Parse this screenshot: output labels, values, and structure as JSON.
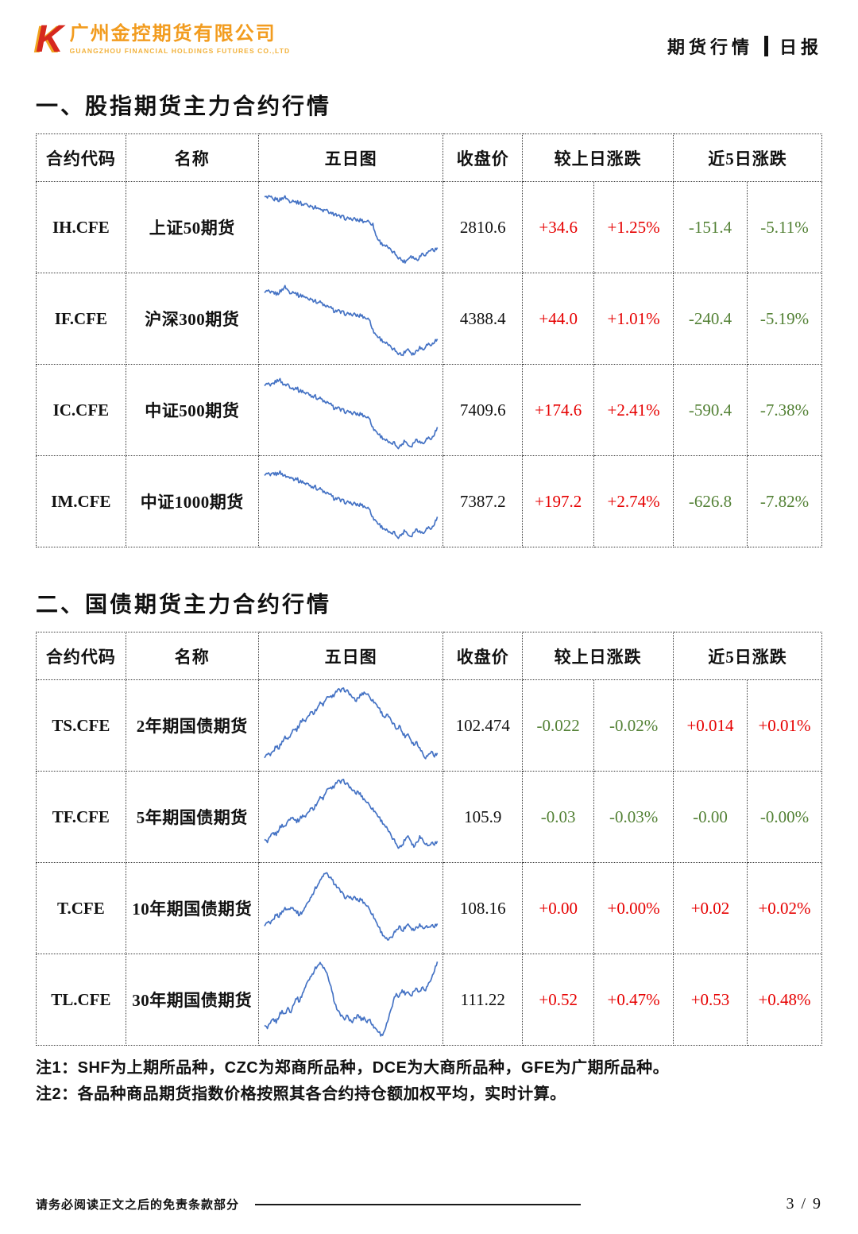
{
  "header": {
    "logo_letter": "K",
    "company_cn": "广州金控期货有限公司",
    "company_en": "GUANGZHOU FINANCIAL HOLDINGS FUTURES CO.,LTD",
    "category": "期货行情",
    "report_type": "日报"
  },
  "columns": {
    "code": "合约代码",
    "name": "名称",
    "chart": "五日图",
    "close": "收盘价",
    "day_change": "较上日涨跌",
    "five_day_change": "近5日涨跌"
  },
  "colors": {
    "rise": "#e60000",
    "fall": "#538135",
    "sparkline": "#4472c4",
    "brand_orange": "#f29c1f",
    "brand_red": "#d6281e"
  },
  "sections": [
    {
      "title": "一、股指期货主力合约行情",
      "table": {
        "rows": [
          {
            "code": "IH.CFE",
            "name": "上证50期货",
            "close": "2810.6",
            "chg": "+34.6",
            "chg_pct": "+1.25%",
            "chg_cls": "rise",
            "chg5": "-151.4",
            "chg5_pct": "-5.11%",
            "chg5_cls": "fall",
            "spark": "chart_data.0.values"
          },
          {
            "code": "IF.CFE",
            "name": "沪深300期货",
            "close": "4388.4",
            "chg": "+44.0",
            "chg_pct": "+1.01%",
            "chg_cls": "rise",
            "chg5": "-240.4",
            "chg5_pct": "-5.19%",
            "chg5_cls": "fall",
            "spark": "chart_data.1.values"
          },
          {
            "code": "IC.CFE",
            "name": "中证500期货",
            "close": "7409.6",
            "chg": "+174.6",
            "chg_pct": "+2.41%",
            "chg_cls": "rise",
            "chg5": "-590.4",
            "chg5_pct": "-7.38%",
            "chg5_cls": "fall",
            "spark": "chart_data.2.values"
          },
          {
            "code": "IM.CFE",
            "name": "中证1000期货",
            "close": "7387.2",
            "chg": "+197.2",
            "chg_pct": "+2.74%",
            "chg_cls": "rise",
            "chg5": "-626.8",
            "chg5_pct": "-7.82%",
            "chg5_cls": "fall",
            "spark": "chart_data.3.values"
          }
        ]
      }
    },
    {
      "title": "二、国债期货主力合约行情",
      "table": {
        "rows": [
          {
            "code": "TS.CFE",
            "name": "2年期国债期货",
            "close": "102.474",
            "chg": "-0.022",
            "chg_pct": "-0.02%",
            "chg_cls": "fall",
            "chg5": "+0.014",
            "chg5_pct": "+0.01%",
            "chg5_cls": "rise",
            "spark": "chart_data.4.values"
          },
          {
            "code": "TF.CFE",
            "name": "5年期国债期货",
            "close": "105.9",
            "chg": "-0.03",
            "chg_pct": "-0.03%",
            "chg_cls": "fall",
            "chg5": "-0.00",
            "chg5_pct": "-0.00%",
            "chg5_cls": "fall",
            "spark": "chart_data.5.values"
          },
          {
            "code": "T.CFE",
            "name": "10年期国债期货",
            "close": "108.16",
            "chg": "+0.00",
            "chg_pct": "+0.00%",
            "chg_cls": "rise",
            "chg5": "+0.02",
            "chg5_pct": "+0.02%",
            "chg5_cls": "rise",
            "spark": "chart_data.6.values"
          },
          {
            "code": "TL.CFE",
            "name": "30年期国债期货",
            "close": "111.22",
            "chg": "+0.52",
            "chg_pct": "+0.47%",
            "chg_cls": "rise",
            "chg5": "+0.53",
            "chg5_pct": "+0.48%",
            "chg5_cls": "rise",
            "spark": "chart_data.7.values"
          }
        ]
      }
    }
  ],
  "notes": [
    "注1：SHF为上期所品种，CZC为郑商所品种，DCE为大商所品种，GFE为广期所品种。",
    "注2：各品种商品期货指数价格按照其各合约持仓额加权平均，实时计算。"
  ],
  "footer": {
    "disclaimer": "请务必阅读正文之后的免责条款部分",
    "page_number": "3 / 9"
  },
  "chart_data": [
    {
      "type": "line",
      "name": "IH.CFE 五日图",
      "ylim": [
        0,
        100
      ],
      "values": [
        88,
        86,
        87,
        84,
        85,
        83,
        86,
        88,
        84,
        82,
        83,
        80,
        81,
        78,
        79,
        76,
        77,
        74,
        75,
        72,
        70,
        71,
        68,
        66,
        67,
        64,
        62,
        63,
        60,
        61,
        59,
        60,
        58,
        59,
        57,
        58,
        56,
        54,
        40,
        34,
        30,
        28,
        25,
        22,
        19,
        16,
        12,
        9,
        7,
        11,
        15,
        12,
        10,
        14,
        18,
        16,
        20,
        23,
        21,
        24
      ]
    },
    {
      "type": "line",
      "name": "IF.CFE 五日图",
      "ylim": [
        0,
        100
      ],
      "values": [
        82,
        84,
        81,
        83,
        80,
        82,
        86,
        90,
        85,
        82,
        83,
        80,
        78,
        79,
        76,
        74,
        75,
        72,
        70,
        71,
        67,
        64,
        65,
        62,
        59,
        60,
        57,
        58,
        55,
        56,
        54,
        55,
        53,
        54,
        52,
        50,
        48,
        36,
        30,
        27,
        24,
        21,
        18,
        15,
        12,
        10,
        7,
        5,
        9,
        13,
        8,
        6,
        11,
        15,
        12,
        16,
        19,
        17,
        21,
        24
      ]
    },
    {
      "type": "line",
      "name": "IC.CFE 五日图",
      "ylim": [
        0,
        100
      ],
      "values": [
        80,
        82,
        79,
        83,
        85,
        88,
        84,
        81,
        82,
        78,
        76,
        77,
        73,
        74,
        70,
        71,
        67,
        68,
        64,
        65,
        61,
        58,
        59,
        55,
        52,
        53,
        49,
        50,
        47,
        48,
        45,
        46,
        44,
        45,
        43,
        41,
        39,
        28,
        24,
        20,
        17,
        14,
        11,
        8,
        10,
        6,
        4,
        8,
        12,
        7,
        5,
        10,
        14,
        11,
        9,
        13,
        16,
        14,
        20,
        28
      ]
    },
    {
      "type": "line",
      "name": "IM.CFE 五日图",
      "ylim": [
        0,
        100
      ],
      "values": [
        82,
        84,
        81,
        85,
        83,
        86,
        84,
        82,
        80,
        81,
        77,
        78,
        74,
        75,
        71,
        72,
        68,
        69,
        65,
        66,
        62,
        59,
        60,
        56,
        53,
        54,
        50,
        51,
        48,
        49,
        46,
        47,
        45,
        46,
        44,
        42,
        40,
        30,
        26,
        22,
        19,
        16,
        13,
        10,
        12,
        8,
        6,
        10,
        14,
        9,
        7,
        12,
        16,
        13,
        11,
        15,
        18,
        16,
        22,
        30
      ]
    },
    {
      "type": "line",
      "name": "TS.CFE 五日图",
      "ylim": [
        0,
        100
      ],
      "values": [
        10,
        14,
        12,
        18,
        24,
        22,
        30,
        36,
        33,
        40,
        46,
        44,
        52,
        58,
        55,
        62,
        68,
        65,
        72,
        78,
        75,
        82,
        86,
        84,
        90,
        94,
        92,
        95,
        93,
        89,
        85,
        80,
        84,
        88,
        91,
        89,
        85,
        81,
        77,
        72,
        66,
        60,
        63,
        57,
        52,
        46,
        50,
        42,
        36,
        40,
        32,
        26,
        30,
        22,
        16,
        10,
        14,
        18,
        12,
        15
      ]
    },
    {
      "type": "line",
      "name": "TF.CFE 五日图",
      "ylim": [
        0,
        100
      ],
      "values": [
        22,
        18,
        25,
        30,
        28,
        35,
        40,
        38,
        45,
        50,
        48,
        44,
        47,
        52,
        50,
        56,
        62,
        60,
        68,
        74,
        72,
        80,
        86,
        84,
        90,
        94,
        92,
        95,
        91,
        87,
        83,
        79,
        81,
        76,
        72,
        68,
        64,
        60,
        55,
        50,
        45,
        40,
        34,
        28,
        22,
        17,
        12,
        15,
        22,
        27,
        20,
        13,
        19,
        26,
        22,
        17,
        14,
        18,
        16,
        19
      ]
    },
    {
      "type": "line",
      "name": "T.CFE 五日图",
      "ylim": [
        0,
        100
      ],
      "values": [
        28,
        32,
        30,
        36,
        42,
        40,
        46,
        50,
        48,
        52,
        49,
        45,
        42,
        46,
        52,
        58,
        65,
        72,
        78,
        84,
        90,
        93,
        89,
        85,
        80,
        75,
        70,
        66,
        63,
        64,
        61,
        63,
        59,
        61,
        57,
        53,
        48,
        42,
        34,
        27,
        20,
        15,
        10,
        13,
        17,
        24,
        28,
        22,
        26,
        31,
        26,
        23,
        27,
        30,
        26,
        28,
        26,
        29,
        27,
        30
      ]
    },
    {
      "type": "line",
      "name": "TL.CFE 五日图",
      "ylim": [
        0,
        100
      ],
      "values": [
        18,
        14,
        20,
        26,
        22,
        30,
        36,
        32,
        40,
        35,
        45,
        52,
        48,
        58,
        66,
        74,
        80,
        86,
        92,
        95,
        90,
        84,
        74,
        60,
        46,
        36,
        30,
        26,
        30,
        25,
        22,
        27,
        31,
        25,
        28,
        22,
        26,
        18,
        14,
        10,
        6,
        12,
        22,
        35,
        48,
        58,
        54,
        62,
        57,
        60,
        55,
        61,
        64,
        60,
        66,
        62,
        70,
        76,
        86,
        96
      ]
    }
  ]
}
